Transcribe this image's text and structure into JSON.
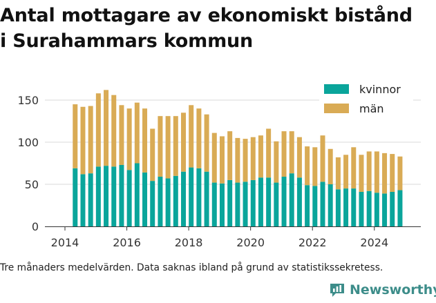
{
  "title_lines": [
    "Antal mottagare av ekonomiskt bistånd",
    "i Surahammars kommun"
  ],
  "caption": "Tre månaders medelvärden. Data saknas ibland på grund av statistikssekretess.",
  "brand": "Newsworthy",
  "colors": {
    "kvinnor": "#0aa59b",
    "man": "#d9ab55",
    "brand": "#3d8d8a",
    "grid": "#d9d9d9"
  },
  "chart_data": {
    "type": "bar",
    "stacked": true,
    "title": "Antal mottagare av ekonomiskt bistånd i Surahammars kommun",
    "xlabel": "",
    "ylabel": "",
    "ylim": [
      0,
      170
    ],
    "xlim": [
      2014,
      2025.5
    ],
    "yticks": [
      0,
      50,
      100,
      150
    ],
    "xticks": [
      2014,
      2016,
      2018,
      2020,
      2022,
      2024
    ],
    "legend_position": "top-right",
    "grid": "horizontal",
    "x": [
      2014.33,
      2014.58,
      2014.83,
      2015.08,
      2015.33,
      2015.58,
      2015.83,
      2016.08,
      2016.33,
      2016.58,
      2016.83,
      2017.08,
      2017.33,
      2017.58,
      2017.83,
      2018.08,
      2018.33,
      2018.58,
      2018.83,
      2019.08,
      2019.33,
      2019.58,
      2019.83,
      2020.08,
      2020.33,
      2020.58,
      2020.83,
      2021.08,
      2021.33,
      2021.58,
      2021.83,
      2022.08,
      2022.33,
      2022.58,
      2022.83,
      2023.08,
      2023.33,
      2023.58,
      2023.83,
      2024.08,
      2024.33,
      2024.58,
      2024.83
    ],
    "series": [
      {
        "name": "kvinnor",
        "values": [
          69,
          62,
          63,
          71,
          72,
          71,
          73,
          67,
          75,
          64,
          54,
          59,
          57,
          60,
          65,
          70,
          69,
          65,
          52,
          51,
          55,
          52,
          53,
          55,
          58,
          58,
          52,
          59,
          63,
          58,
          49,
          48,
          53,
          50,
          44,
          45,
          45,
          41,
          42,
          40,
          39,
          41,
          43
        ]
      },
      {
        "name": "män",
        "values": [
          76,
          80,
          80,
          87,
          90,
          85,
          71,
          73,
          72,
          76,
          62,
          72,
          74,
          71,
          70,
          74,
          71,
          68,
          59,
          56,
          58,
          53,
          51,
          51,
          50,
          58,
          49,
          54,
          50,
          48,
          46,
          46,
          55,
          42,
          38,
          40,
          49,
          44,
          47,
          49,
          48,
          45,
          40
        ]
      }
    ]
  }
}
